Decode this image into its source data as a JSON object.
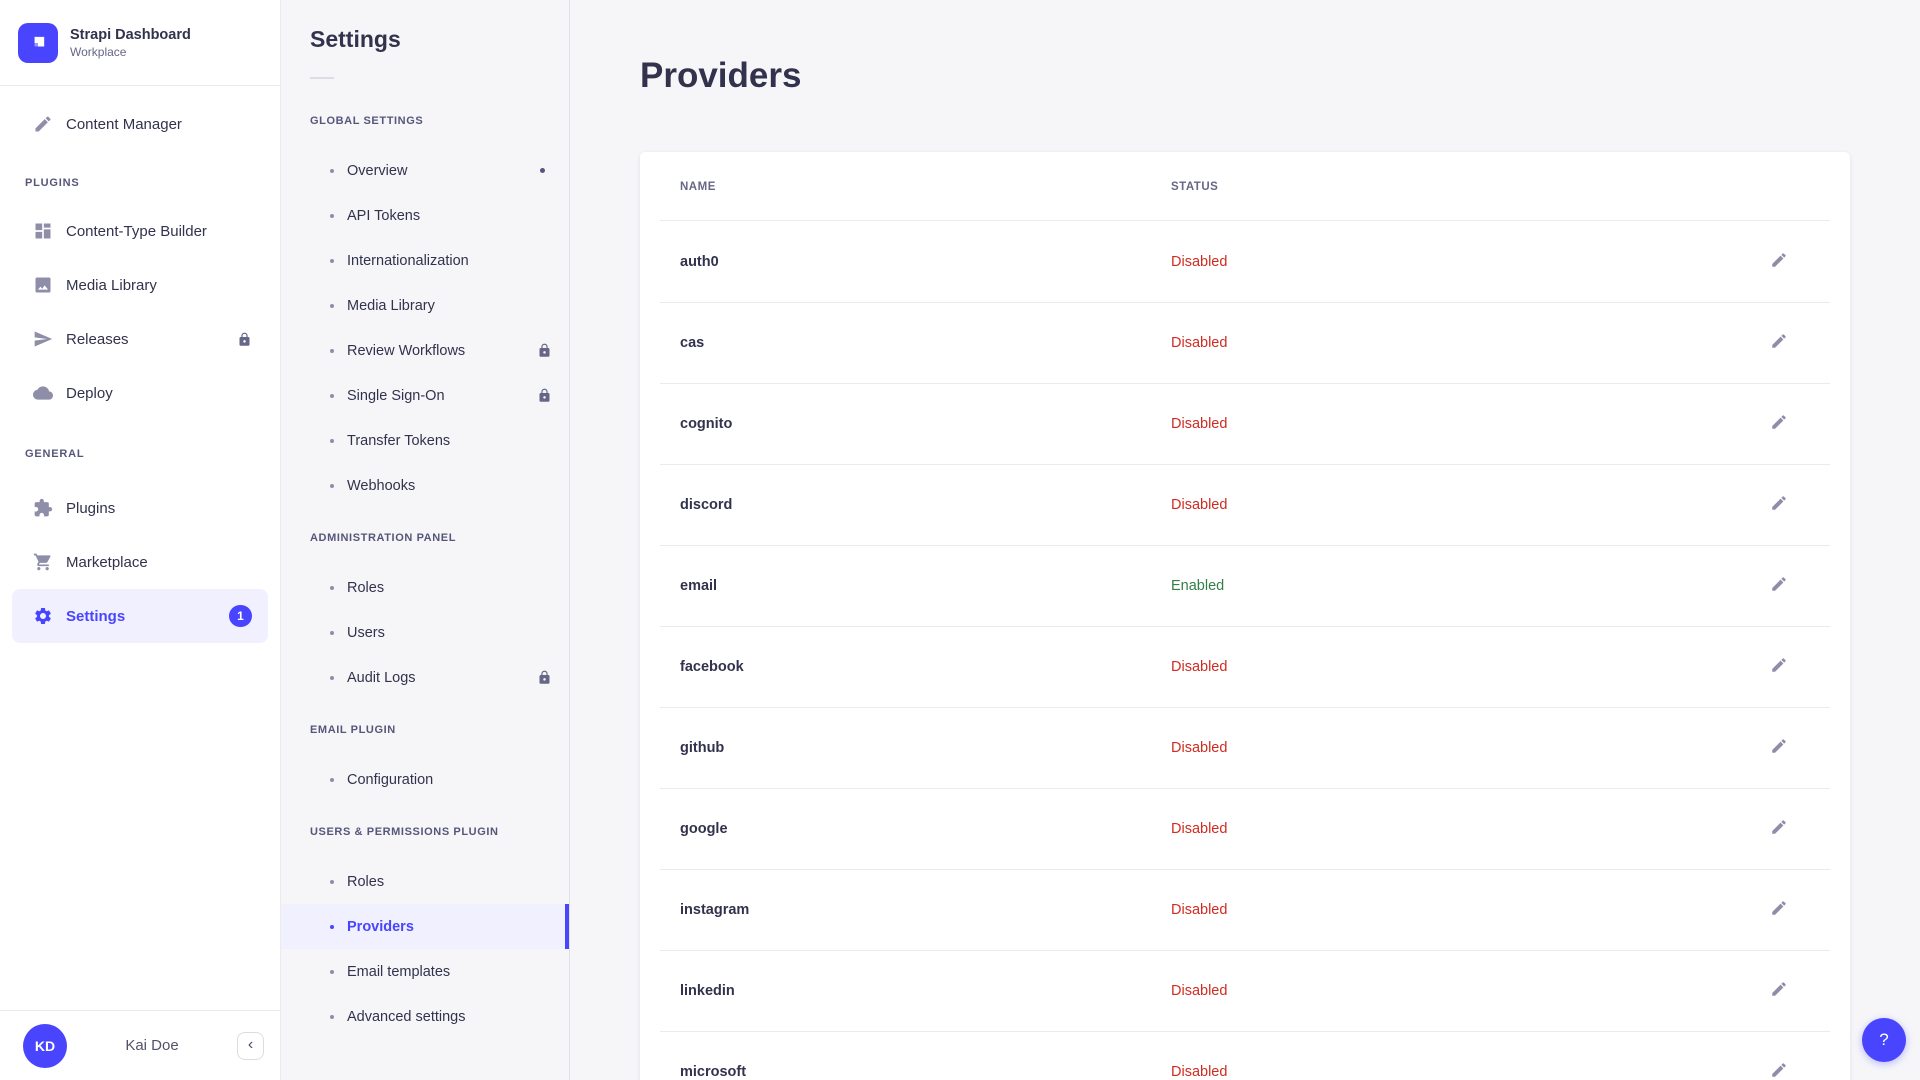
{
  "colors": {
    "primary": "#4945ff",
    "primary_light": "#f0f0ff",
    "danger": "#d02b20",
    "success": "#328048",
    "text": "#32324d",
    "muted": "#666687",
    "border": "#eaeaef",
    "background": "#f6f6f9"
  },
  "brand": {
    "title": "Strapi Dashboard",
    "subtitle": "Workplace",
    "logo_icon": "strapi-logo"
  },
  "sidebar": {
    "sections": [
      {
        "label": "",
        "items": [
          {
            "id": "content-manager",
            "label": "Content Manager",
            "icon": "write"
          }
        ]
      },
      {
        "label": "PLUGINS",
        "items": [
          {
            "id": "content-type-builder",
            "label": "Content-Type Builder",
            "icon": "layout"
          },
          {
            "id": "media-library",
            "label": "Media Library",
            "icon": "images"
          },
          {
            "id": "releases",
            "label": "Releases",
            "icon": "paper-plane",
            "locked": true
          },
          {
            "id": "deploy",
            "label": "Deploy",
            "icon": "cloud"
          }
        ]
      },
      {
        "label": "GENERAL",
        "items": [
          {
            "id": "plugins",
            "label": "Plugins",
            "icon": "puzzle"
          },
          {
            "id": "marketplace",
            "label": "Marketplace",
            "icon": "cart"
          },
          {
            "id": "settings",
            "label": "Settings",
            "icon": "gear",
            "active": true,
            "badge": "1"
          }
        ]
      }
    ],
    "footer": {
      "avatar_initials": "KD",
      "user_name": "Kai Doe",
      "collapse_icon": "‹"
    }
  },
  "subnav": {
    "title": "Settings",
    "sections": [
      {
        "label": "GLOBAL SETTINGS",
        "items": [
          {
            "label": "Overview",
            "has_dot": true
          },
          {
            "label": "API Tokens"
          },
          {
            "label": "Internationalization"
          },
          {
            "label": "Media Library"
          },
          {
            "label": "Review Workflows",
            "locked": true
          },
          {
            "label": "Single Sign-On",
            "locked": true
          },
          {
            "label": "Transfer Tokens"
          },
          {
            "label": "Webhooks"
          }
        ]
      },
      {
        "label": "ADMINISTRATION PANEL",
        "items": [
          {
            "label": "Roles"
          },
          {
            "label": "Users"
          },
          {
            "label": "Audit Logs",
            "locked": true
          }
        ]
      },
      {
        "label": "EMAIL PLUGIN",
        "items": [
          {
            "label": "Configuration"
          }
        ]
      },
      {
        "label": "USERS & PERMISSIONS PLUGIN",
        "items": [
          {
            "label": "Roles"
          },
          {
            "label": "Providers",
            "active": true
          },
          {
            "label": "Email templates"
          },
          {
            "label": "Advanced settings"
          }
        ]
      }
    ]
  },
  "main": {
    "title": "Providers",
    "table": {
      "columns": [
        "NAME",
        "STATUS"
      ],
      "rows": [
        {
          "name": "auth0",
          "status": "Disabled"
        },
        {
          "name": "cas",
          "status": "Disabled"
        },
        {
          "name": "cognito",
          "status": "Disabled"
        },
        {
          "name": "discord",
          "status": "Disabled"
        },
        {
          "name": "email",
          "status": "Enabled"
        },
        {
          "name": "facebook",
          "status": "Disabled"
        },
        {
          "name": "github",
          "status": "Disabled"
        },
        {
          "name": "google",
          "status": "Disabled"
        },
        {
          "name": "instagram",
          "status": "Disabled"
        },
        {
          "name": "linkedin",
          "status": "Disabled"
        },
        {
          "name": "microsoft",
          "status": "Disabled"
        }
      ]
    }
  },
  "help_button": {
    "label": "?"
  }
}
